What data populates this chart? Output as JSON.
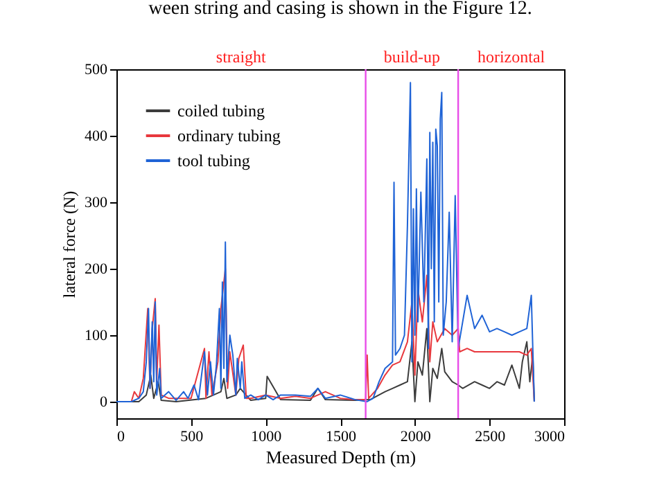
{
  "chart_data": {
    "type": "line",
    "xlabel": "Measured Depth (m)",
    "ylabel": "lateral force (N)",
    "xlim": [
      0,
      3000
    ],
    "xticks": [
      0,
      500,
      1000,
      1500,
      2000,
      2500,
      3000
    ],
    "ylim": [
      -25,
      500
    ],
    "yticks": [
      0,
      100,
      200,
      300,
      400,
      500
    ],
    "grid": false,
    "legend": "top left",
    "marker": "none",
    "line_style": "solid",
    "annotations": [
      "ween string and casing is shown in the Figure 12.",
      "straight",
      "build-up",
      "horizontal"
    ],
    "ref_lines": [
      {
        "axis": "x",
        "value": 1670,
        "color": "#e84ce8"
      },
      {
        "axis": "x",
        "value": 2290,
        "color": "#e84ce8"
      }
    ],
    "series": [
      {
        "name": "coiled tubing",
        "color": "#3c3c3c",
        "x": [
          0,
          150,
          200,
          230,
          250,
          280,
          300,
          400,
          600,
          700,
          720,
          740,
          800,
          830,
          900,
          1000,
          1010,
          1100,
          1300,
          1350,
          1400,
          1600,
          1700,
          1800,
          1850,
          1900,
          1950,
          1980,
          2000,
          2020,
          2050,
          2080,
          2100,
          2120,
          2150,
          2180,
          2200,
          2250,
          2290,
          2320,
          2400,
          2450,
          2500,
          2550,
          2600,
          2650,
          2700,
          2720,
          2750,
          2770,
          2790,
          2800
        ],
        "values": [
          0,
          0,
          10,
          40,
          5,
          30,
          2,
          0,
          5,
          15,
          35,
          5,
          10,
          20,
          2,
          5,
          38,
          3,
          2,
          20,
          3,
          2,
          3,
          15,
          20,
          25,
          30,
          90,
          0,
          60,
          40,
          110,
          0,
          50,
          35,
          80,
          45,
          30,
          25,
          20,
          30,
          25,
          20,
          30,
          25,
          55,
          20,
          60,
          90,
          30,
          70,
          0
        ]
      },
      {
        "name": "ordinary tubing",
        "color": "#e8383d",
        "x": [
          0,
          100,
          120,
          150,
          180,
          210,
          225,
          240,
          260,
          270,
          285,
          300,
          350,
          500,
          590,
          600,
          620,
          640,
          680,
          700,
          730,
          745,
          760,
          800,
          820,
          850,
          870,
          900,
          1000,
          1100,
          1200,
          1300,
          1400,
          1500,
          1600,
          1670,
          1680,
          1690,
          1750,
          1800,
          1850,
          1900,
          1950,
          1980,
          2000,
          2020,
          2050,
          2080,
          2100,
          2120,
          2150,
          2200,
          2250,
          2290,
          2300,
          2350,
          2400,
          2500,
          2600,
          2700,
          2750,
          2780,
          2800
        ],
        "values": [
          0,
          0,
          15,
          5,
          35,
          140,
          20,
          110,
          155,
          30,
          115,
          10,
          5,
          5,
          80,
          5,
          75,
          10,
          60,
          140,
          200,
          20,
          75,
          10,
          65,
          85,
          5,
          5,
          10,
          5,
          8,
          5,
          15,
          5,
          3,
          3,
          70,
          5,
          20,
          40,
          55,
          60,
          90,
          150,
          40,
          170,
          120,
          190,
          60,
          120,
          90,
          110,
          100,
          110,
          75,
          80,
          75,
          75,
          75,
          75,
          70,
          80,
          0
        ]
      },
      {
        "name": "tool tubing",
        "color": "#1f63d6",
        "x": [
          0,
          100,
          150,
          180,
          200,
          215,
          225,
          240,
          250,
          260,
          270,
          290,
          300,
          350,
          400,
          450,
          480,
          520,
          550,
          590,
          610,
          630,
          650,
          670,
          690,
          700,
          710,
          720,
          730,
          740,
          760,
          780,
          800,
          810,
          830,
          840,
          860,
          900,
          950,
          1000,
          1050,
          1100,
          1200,
          1300,
          1350,
          1400,
          1500,
          1600,
          1680,
          1720,
          1760,
          1800,
          1850,
          1860,
          1870,
          1900,
          1930,
          1950,
          1970,
          1980,
          1990,
          2000,
          2010,
          2020,
          2040,
          2060,
          2080,
          2090,
          2100,
          2110,
          2120,
          2130,
          2140,
          2150,
          2160,
          2170,
          2180,
          2190,
          2210,
          2230,
          2250,
          2270,
          2290,
          2320,
          2350,
          2400,
          2450,
          2500,
          2550,
          2600,
          2650,
          2700,
          2750,
          2780,
          2800
        ],
        "values": [
          0,
          0,
          5,
          15,
          60,
          140,
          20,
          120,
          30,
          150,
          10,
          50,
          5,
          15,
          2,
          15,
          5,
          25,
          3,
          75,
          10,
          60,
          10,
          55,
          140,
          20,
          180,
          50,
          240,
          30,
          100,
          70,
          10,
          65,
          20,
          60,
          5,
          10,
          3,
          10,
          3,
          10,
          10,
          8,
          20,
          5,
          10,
          3,
          0,
          5,
          30,
          50,
          60,
          330,
          70,
          80,
          100,
          265,
          480,
          60,
          290,
          100,
          320,
          120,
          315,
          150,
          365,
          80,
          405,
          200,
          390,
          120,
          410,
          385,
          150,
          425,
          465,
          100,
          150,
          285,
          90,
          310,
          80,
          120,
          160,
          110,
          130,
          105,
          110,
          105,
          100,
          105,
          110,
          160,
          0
        ]
      }
    ]
  }
}
